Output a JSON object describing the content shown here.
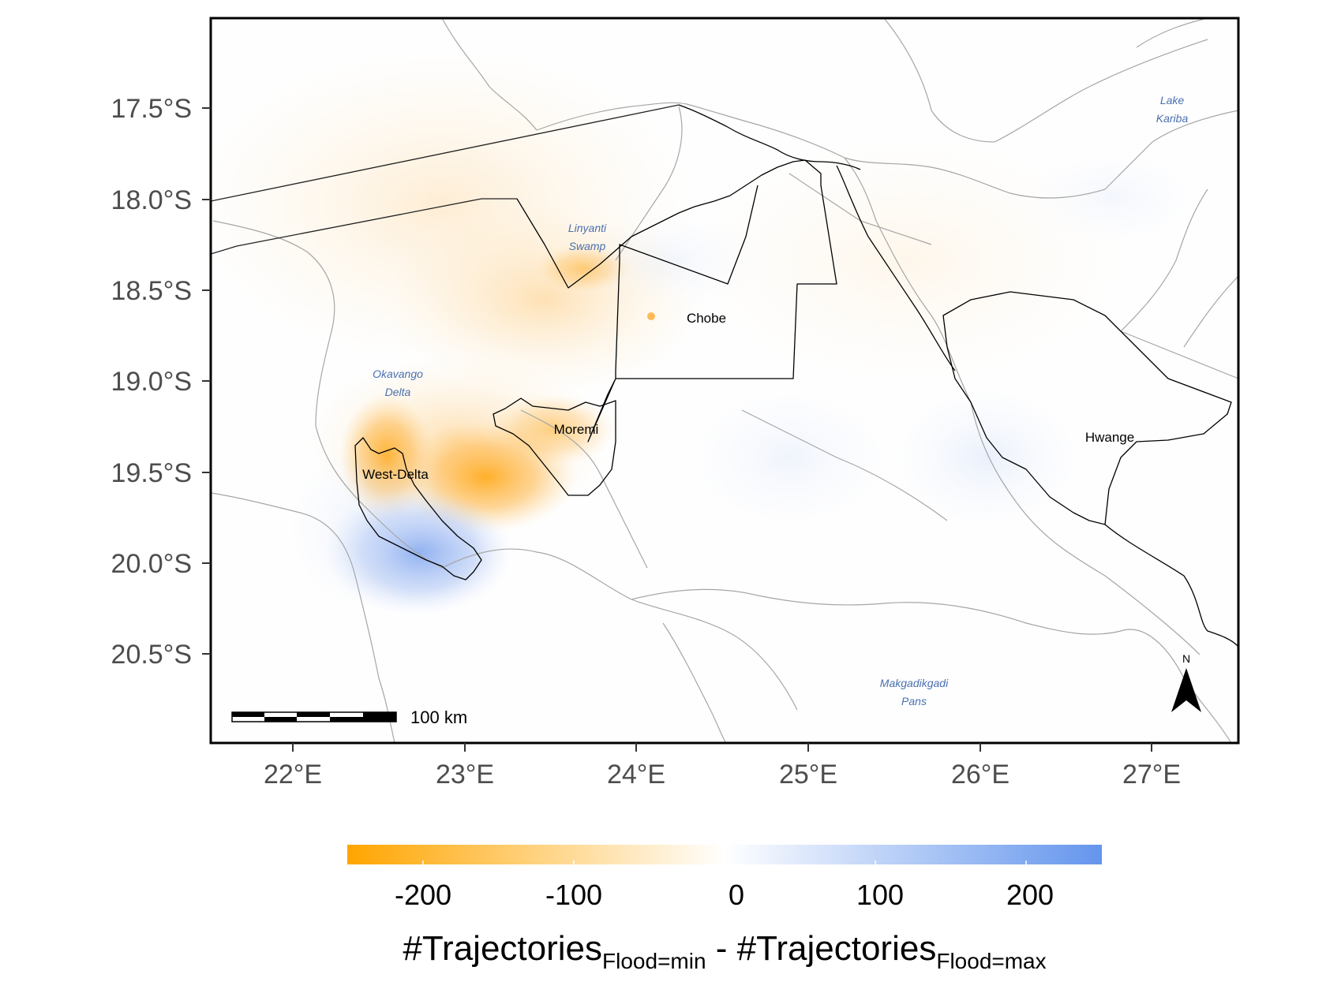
{
  "map": {
    "y_axis": {
      "unit": "°S",
      "ticks": [
        "17.5°S",
        "18.0°S",
        "18.5°S",
        "19.0°S",
        "19.5°S",
        "20.0°S",
        "20.5°S"
      ]
    },
    "x_axis": {
      "unit": "°E",
      "ticks": [
        "22°E",
        "23°E",
        "24°E",
        "25°E",
        "26°E",
        "27°E"
      ]
    },
    "protected_areas": [
      "Chobe",
      "Moremi",
      "West-Delta",
      "Hwange"
    ],
    "water_features": {
      "lake_kariba": [
        "Lake",
        "Kariba"
      ],
      "linyanti_swamp": [
        "Linyanti",
        "Swamp"
      ],
      "okavango_delta": [
        "Okavango",
        "Delta"
      ],
      "makgadikgadi_pans": [
        "Makgadikgadi",
        "Pans"
      ]
    },
    "scale_bar": "100 km",
    "north_arrow": "N",
    "colors": {
      "negative": "#FFA500",
      "zero": "#FFFFFF",
      "positive": "#6495ED",
      "park_border": "#000000",
      "admin_border": "#9e9e9e",
      "water_label": "#4a6fb0"
    }
  },
  "legend": {
    "ticks": [
      "-200",
      "-100",
      "0",
      "100",
      "200"
    ],
    "title_parts": {
      "a": "#Trajectories",
      "a_sub": "Flood=min",
      "sep": " - ",
      "b": "#Trajectories",
      "b_sub": "Flood=max"
    }
  }
}
